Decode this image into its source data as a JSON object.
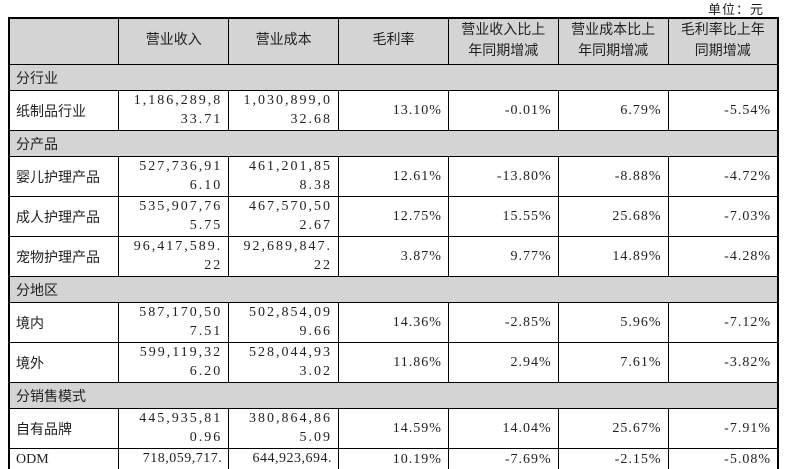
{
  "unit_label": "单位：元",
  "colors": {
    "header_bg": "#d4d4d4",
    "border": "#000000",
    "text": "#1f1f1f",
    "page_bg": "#ffffff"
  },
  "table": {
    "columns": [
      "",
      "营业收入",
      "营业成本",
      "毛利率",
      "营业收入比上年同期增减",
      "营业成本比上年同期增减",
      "毛利率比上年同期增减"
    ],
    "rows": [
      {
        "type": "section",
        "label": "分行业"
      },
      {
        "type": "data",
        "label": "纸制品行业",
        "revenue": "1,186,289,833.71",
        "cost": "1,030,899,032.68",
        "margin": "13.10%",
        "revenue_yoy": "-0.01%",
        "cost_yoy": "6.79%",
        "margin_yoy": "-5.54%"
      },
      {
        "type": "section",
        "label": "分产品"
      },
      {
        "type": "data",
        "label": "婴儿护理产品",
        "revenue": "527,736,916.10",
        "cost": "461,201,858.38",
        "margin": "12.61%",
        "revenue_yoy": "-13.80%",
        "cost_yoy": "-8.88%",
        "margin_yoy": "-4.72%"
      },
      {
        "type": "data",
        "label": "成人护理产品",
        "revenue": "535,907,765.75",
        "cost": "467,570,502.67",
        "margin": "12.75%",
        "revenue_yoy": "15.55%",
        "cost_yoy": "25.68%",
        "margin_yoy": "-7.03%"
      },
      {
        "type": "data",
        "label": "宠物护理产品",
        "revenue": "96,417,589.22",
        "cost": "92,689,847.22",
        "margin": "3.87%",
        "revenue_yoy": "9.77%",
        "cost_yoy": "14.89%",
        "margin_yoy": "-4.28%"
      },
      {
        "type": "section",
        "label": "分地区"
      },
      {
        "type": "data",
        "label": "境内",
        "revenue": "587,170,507.51",
        "cost": "502,854,099.66",
        "margin": "14.36%",
        "revenue_yoy": "-2.85%",
        "cost_yoy": "5.96%",
        "margin_yoy": "-7.12%"
      },
      {
        "type": "data",
        "label": "境外",
        "revenue": "599,119,326.20",
        "cost": "528,044,933.02",
        "margin": "11.86%",
        "revenue_yoy": "2.94%",
        "cost_yoy": "7.61%",
        "margin_yoy": "-3.82%"
      },
      {
        "type": "section",
        "label": "分销售模式"
      },
      {
        "type": "data",
        "label": "自有品牌",
        "revenue": "445,935,810.96",
        "cost": "380,864,865.09",
        "margin": "14.59%",
        "revenue_yoy": "14.04%",
        "cost_yoy": "25.67%",
        "margin_yoy": "-7.91%"
      },
      {
        "type": "data",
        "label": "ODM",
        "revenue": "718,059,717.",
        "cost": "644,923,694.",
        "margin": "10.19%",
        "revenue_yoy": "-7.69%",
        "cost_yoy": "-2.15%",
        "margin_yoy": "-5.08%",
        "clipped": true
      }
    ]
  }
}
